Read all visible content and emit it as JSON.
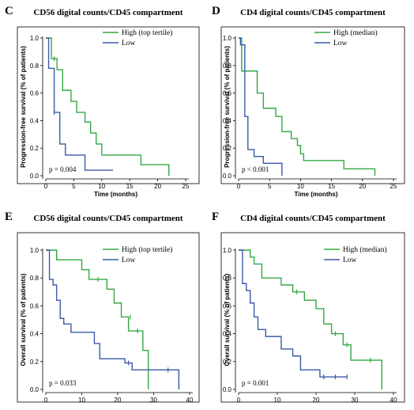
{
  "colors": {
    "high": "#33a844",
    "low": "#3a5ba8",
    "axis": "#000000",
    "frame": "#000000"
  },
  "chart_data": [
    {
      "type": "line",
      "panel": "C",
      "title": "CD56 digital counts/CD45 compartment",
      "xlabel": "Time (months)",
      "ylabel": "Progression-free survival (% of patients)",
      "xlim": [
        0,
        25
      ],
      "ylim": [
        0,
        1
      ],
      "xticks": [
        "0",
        "5",
        "10",
        "15",
        "20",
        "25"
      ],
      "yticks": [
        "0.0",
        "0.2",
        "0.4",
        "0.6",
        "0.8",
        "1.0"
      ],
      "legend": "top-right",
      "pvalue": "p = 0.004",
      "series": [
        {
          "name": "High (top tertile)",
          "color": "high",
          "x": [
            0,
            1.0,
            2.0,
            3.0,
            4.5,
            5.5,
            7.0,
            8.0,
            9.0,
            10.0,
            17.0,
            22.0
          ],
          "y": [
            1.0,
            0.85,
            0.77,
            0.62,
            0.54,
            0.46,
            0.39,
            0.31,
            0.23,
            0.15,
            0.08,
            0.0
          ],
          "censor_x": [
            1.5
          ],
          "censor_y": [
            0.85
          ]
        },
        {
          "name": "Low",
          "color": "low",
          "x": [
            0,
            0.5,
            1.5,
            2.5,
            3.5,
            7.0,
            12.0
          ],
          "y": [
            1.0,
            0.78,
            0.46,
            0.23,
            0.15,
            0.04,
            0.04
          ],
          "censor_x": [
            1.5
          ],
          "censor_y": [
            0.46
          ]
        }
      ]
    },
    {
      "type": "line",
      "panel": "D",
      "title": "CD4 digital counts/CD45 compartment",
      "xlabel": "Time (months)",
      "ylabel": "Progression-free survival (% of patients)",
      "xlim": [
        0,
        25
      ],
      "ylim": [
        0,
        1
      ],
      "xticks": [
        "0",
        "5",
        "10",
        "15",
        "20",
        "25"
      ],
      "yticks": [
        "0.0",
        "0.2",
        "0.4",
        "0.6",
        "0.8",
        "1.0"
      ],
      "legend": "top-right",
      "pvalue": "p < 0.001",
      "series": [
        {
          "name": "High (median)",
          "color": "high",
          "x": [
            0,
            0.5,
            3.0,
            4.0,
            6.0,
            7.0,
            8.5,
            9.5,
            10.0,
            10.5,
            12.0,
            17.0,
            22.0
          ],
          "y": [
            1.0,
            0.76,
            0.6,
            0.49,
            0.43,
            0.32,
            0.27,
            0.22,
            0.16,
            0.11,
            0.11,
            0.05,
            0.0
          ],
          "censor_x": [],
          "censor_y": []
        },
        {
          "name": "Low",
          "color": "low",
          "x": [
            0,
            0.3,
            1.0,
            1.5,
            2.5,
            4.0,
            7.0
          ],
          "y": [
            1.0,
            0.95,
            0.43,
            0.19,
            0.14,
            0.09,
            0.0
          ],
          "censor_x": [],
          "censor_y": []
        }
      ]
    },
    {
      "type": "line",
      "panel": "E",
      "title": "CD56 digital counts/CD45 compartment",
      "xlabel": "",
      "ylabel": "Overall survival (% of patients)",
      "xlim": [
        0,
        40
      ],
      "ylim": [
        0,
        1
      ],
      "xticks": [
        "0",
        "10",
        "20",
        "30",
        "40"
      ],
      "yticks": [
        "0.0",
        "0.2",
        "0.4",
        "0.6",
        "0.8",
        "1.0"
      ],
      "legend": "top-right",
      "pvalue": "p = 0.033",
      "series": [
        {
          "name": "High (top tertile)",
          "color": "high",
          "x": [
            0,
            3.0,
            10.0,
            12.0,
            17.0,
            19.0,
            21.0,
            23.0,
            25.0,
            27.0,
            28.5
          ],
          "y": [
            1.0,
            0.93,
            0.86,
            0.79,
            0.72,
            0.62,
            0.52,
            0.42,
            0.42,
            0.28,
            0.0
          ],
          "censor_x": [
            14.5,
            23.5,
            25.5
          ],
          "censor_y": [
            0.79,
            0.52,
            0.42
          ]
        },
        {
          "name": "Low",
          "color": "low",
          "x": [
            0,
            1.0,
            2.0,
            3.0,
            4.0,
            5.0,
            7.0,
            12.0,
            13.5,
            15.0,
            22.0,
            24.0,
            37.0
          ],
          "y": [
            1.0,
            0.79,
            0.75,
            0.64,
            0.51,
            0.47,
            0.41,
            0.41,
            0.33,
            0.22,
            0.19,
            0.14,
            0.0
          ],
          "censor_x": [
            23.0,
            34.0
          ],
          "censor_y": [
            0.19,
            0.14
          ]
        }
      ]
    },
    {
      "type": "line",
      "panel": "F",
      "title": "CD4 digital counts/CD45 compartment",
      "xlabel": "",
      "ylabel": "Overall survival (% of patients)",
      "xlim": [
        0,
        40
      ],
      "ylim": [
        0,
        1
      ],
      "xticks": [
        "0",
        "10",
        "20",
        "30",
        "40"
      ],
      "yticks": [
        "0.0",
        "0.2",
        "0.4",
        "0.6",
        "0.8",
        "1.0"
      ],
      "legend": "top-right",
      "pvalue": "p = 0.001",
      "series": [
        {
          "name": "High (median)",
          "color": "high",
          "x": [
            0,
            3.0,
            4.0,
            6.0,
            11.0,
            14.0,
            17.0,
            20.0,
            22.0,
            24.0,
            27.0,
            29.0,
            37.0
          ],
          "y": [
            1.0,
            0.95,
            0.9,
            0.8,
            0.75,
            0.7,
            0.64,
            0.58,
            0.47,
            0.4,
            0.32,
            0.21,
            0.0
          ],
          "censor_x": [
            15.0,
            25.0,
            28.0,
            34.0
          ],
          "censor_y": [
            0.7,
            0.4,
            0.32,
            0.21
          ]
        },
        {
          "name": "Low",
          "color": "low",
          "x": [
            0,
            1.0,
            2.0,
            3.0,
            4.0,
            5.0,
            7.0,
            11.0,
            14.0,
            16.0,
            21.0,
            28.0
          ],
          "y": [
            1.0,
            0.76,
            0.71,
            0.62,
            0.52,
            0.43,
            0.38,
            0.29,
            0.24,
            0.14,
            0.09,
            0.09
          ],
          "censor_x": [
            22.0,
            25.0,
            28.0
          ],
          "censor_y": [
            0.09,
            0.09,
            0.09
          ]
        }
      ]
    }
  ]
}
